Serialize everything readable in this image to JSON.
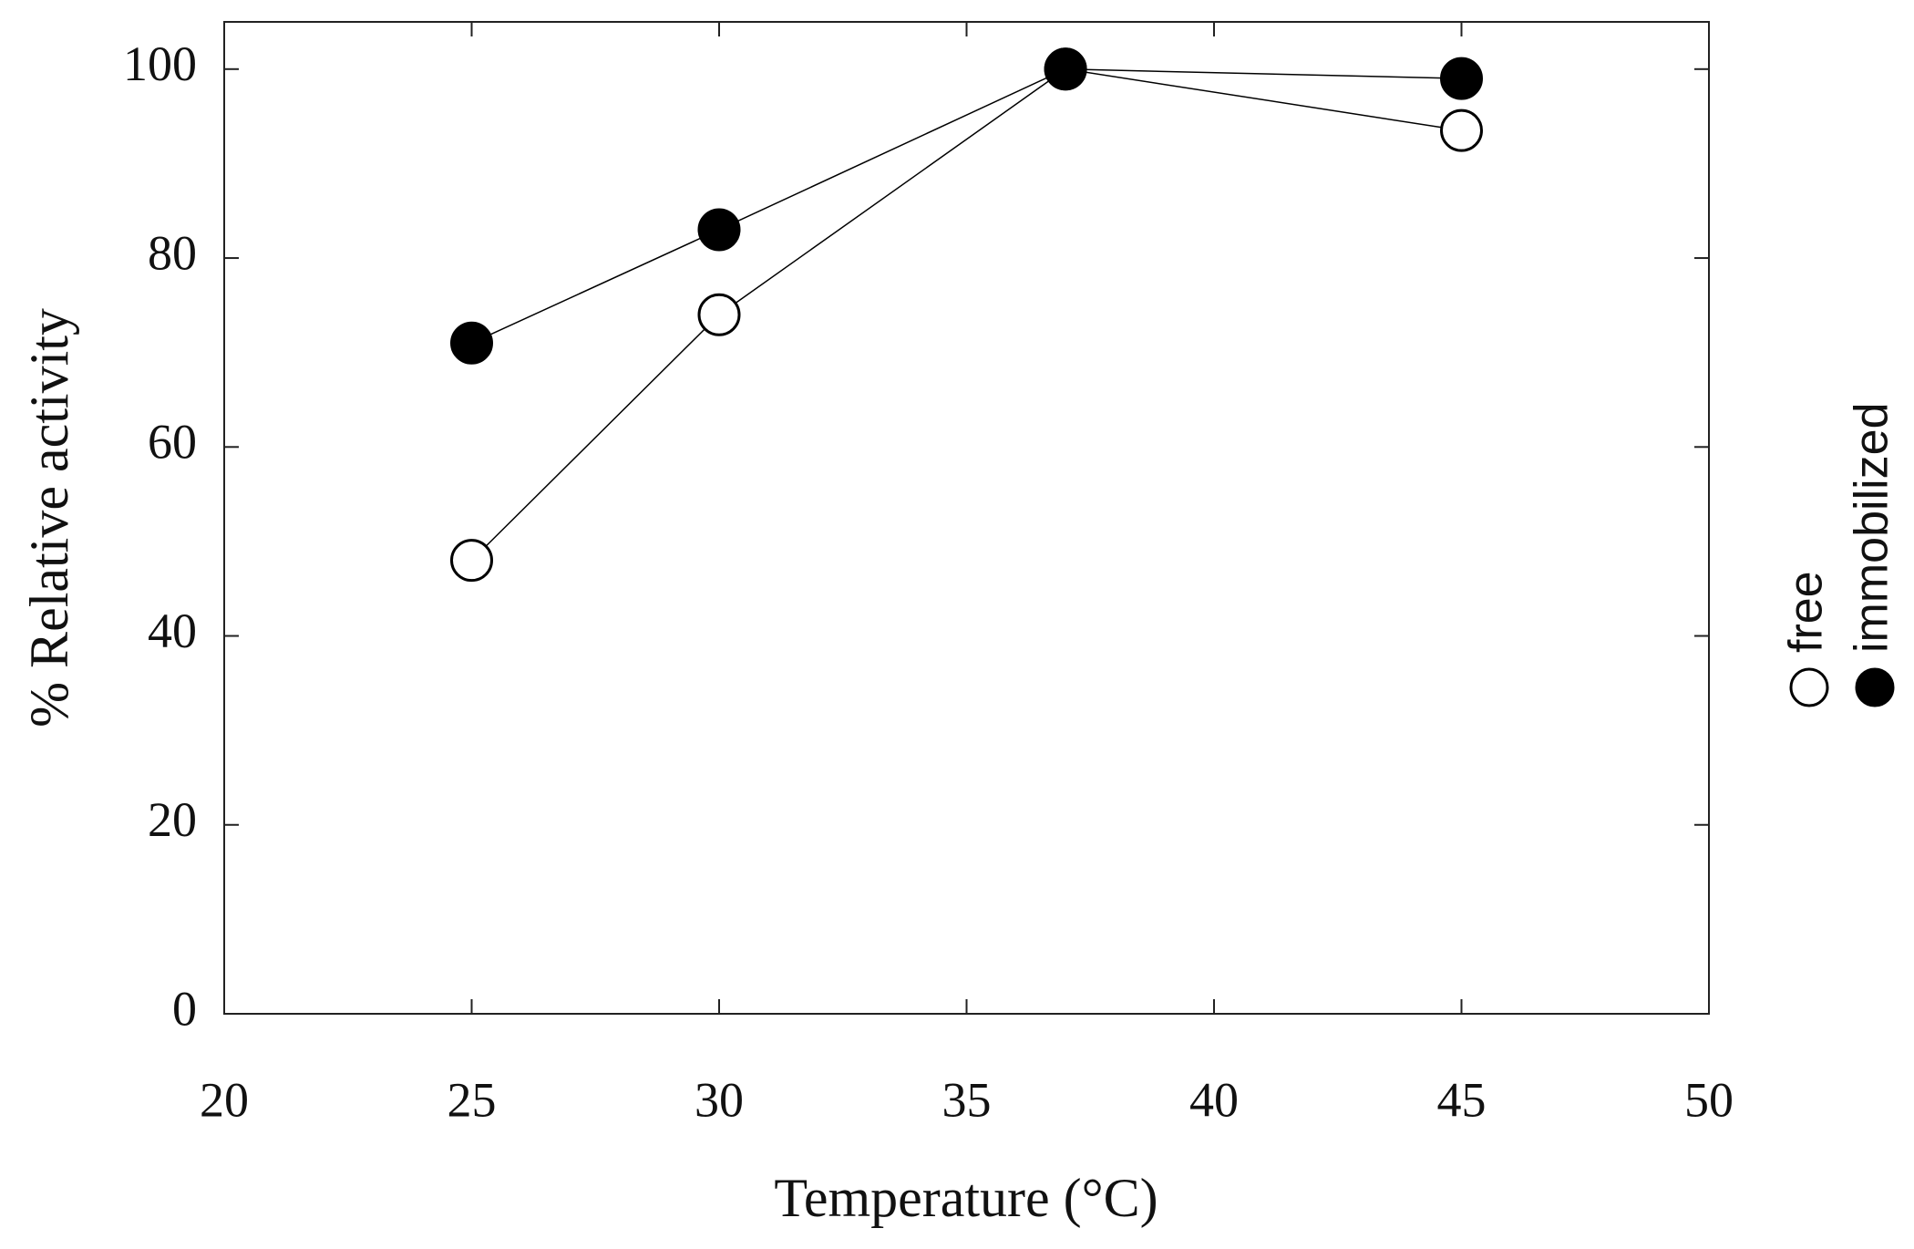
{
  "chart_data": {
    "type": "line",
    "x_label": "Temperature (°C)",
    "y_label": "% Relative activity",
    "x": [
      25,
      30,
      37,
      45
    ],
    "series": [
      {
        "name": "free",
        "color": "#000000",
        "filled": false,
        "values": [
          48,
          74,
          100,
          93.5
        ]
      },
      {
        "name": "immobilized",
        "color": "#000000",
        "filled": true,
        "values": [
          71,
          83,
          100,
          99
        ]
      }
    ],
    "xlim": [
      20,
      50
    ],
    "xticks": [
      20,
      25,
      30,
      35,
      40,
      45,
      50
    ],
    "ylim": [
      0,
      105
    ],
    "yticks": [
      0,
      20,
      40,
      60,
      80,
      100
    ],
    "grid": false,
    "legend": "right"
  }
}
